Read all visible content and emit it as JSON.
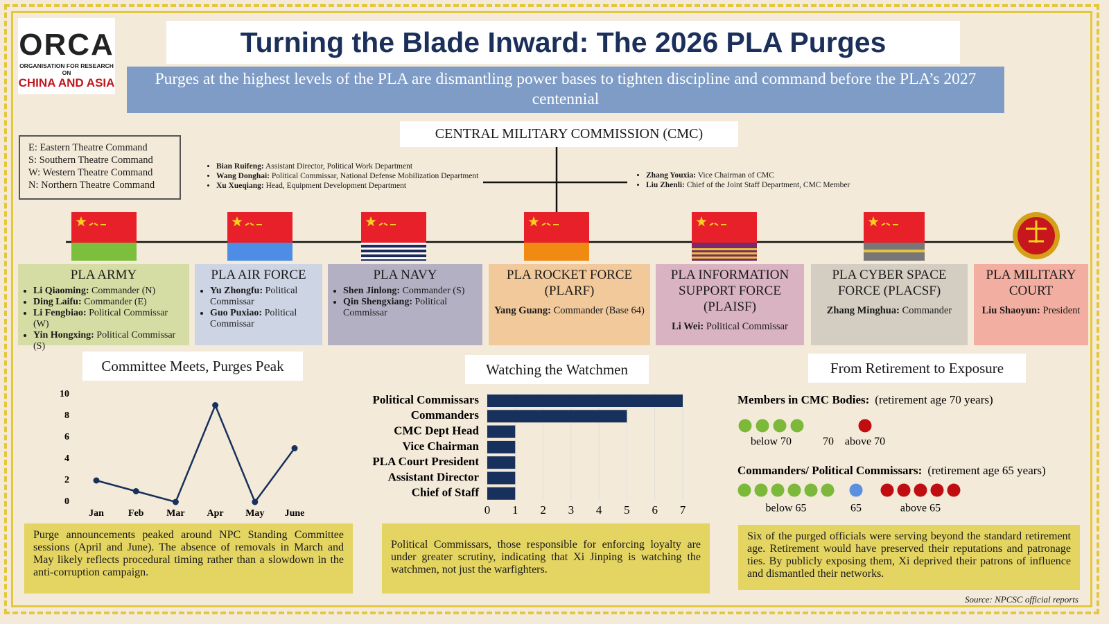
{
  "header": {
    "logo_name": "ORCA",
    "logo_sub1": "ORGANISATION FOR RESEARCH ON",
    "logo_sub2": "CHINA AND ASIA",
    "title": "Turning the Blade Inward: The 2026 PLA Purges",
    "subtitle": "Purges at the highest levels of the PLA are dismantling power bases to tighten discipline and command before the PLA’s 2027 centennial"
  },
  "legend": [
    "E: Eastern Theatre Command",
    "S: Southern Theatre Command",
    "W: Western Theatre Command",
    "N: Northern Theatre Command"
  ],
  "cmc": {
    "title": "CENTRAL MILITARY COMMISSION (CMC)",
    "left": [
      {
        "name": "Bian Ruifeng:",
        "role": "Assistant Director, Political Work Department"
      },
      {
        "name": "Wang Donghai:",
        "role": "Political Commissar, National Defense Mobilization Department"
      },
      {
        "name": "Xu Xueqiang:",
        "role": "Head, Equipment Development Department"
      }
    ],
    "right": [
      {
        "name": "Zhang Youxia:",
        "role": "Vice Chairman of CMC"
      },
      {
        "name": "Liu Zhenli:",
        "role": "Chief of the Joint Staff Department, CMC Member"
      }
    ]
  },
  "branches": [
    {
      "title": "PLA ARMY",
      "members": [
        {
          "name": "Li Qiaoming:",
          "role": "Commander (N)"
        },
        {
          "name": "Ding Laifu:",
          "role": "Commander (E)"
        },
        {
          "name": "Li Fengbiao:",
          "role": "Political Commissar (W)"
        },
        {
          "name": "Yin Hongxing:",
          "role": "Political Commissar (S)"
        }
      ]
    },
    {
      "title": "PLA AIR FORCE",
      "members": [
        {
          "name": "Yu Zhongfu:",
          "role": "Political Commissar"
        },
        {
          "name": "Guo Puxiao:",
          "role": "Political Commissar"
        }
      ]
    },
    {
      "title": "PLA NAVY",
      "members": [
        {
          "name": "Shen Jinlong:",
          "role": "Commander (S)"
        },
        {
          "name": "Qin Shengxiang:",
          "role": "Political Commissar"
        }
      ]
    },
    {
      "title": "PLA ROCKET FORCE (PLARF)",
      "members": [
        {
          "name": "Yang Guang:",
          "role": "Commander (Base 64)"
        }
      ]
    },
    {
      "title": "PLA INFORMATION SUPPORT FORCE (PLAISF)",
      "members": [
        {
          "name": "Li Wei:",
          "role": "Political Commissar"
        }
      ]
    },
    {
      "title": "PLA CYBER SPACE FORCE (PLACSF)",
      "members": [
        {
          "name": "Zhang Minghua:",
          "role": "Commander"
        }
      ]
    },
    {
      "title": "PLA MILITARY COURT",
      "members": [
        {
          "name": "Liu Shaoyun:",
          "role": "President"
        }
      ]
    }
  ],
  "chart_data": [
    {
      "type": "line",
      "title": "Committee Meets, Purges Peak",
      "categories": [
        "Jan",
        "Feb",
        "Mar",
        "Apr",
        "May",
        "June"
      ],
      "values": [
        2,
        1,
        0,
        9,
        0,
        5
      ],
      "color": "#17305c",
      "ylim": [
        0,
        10
      ],
      "yticks": [
        0,
        2,
        4,
        6,
        8,
        10
      ],
      "caption": "Purge announcements peaked around NPC Standing Committee sessions (April and June). The absence of removals in March and May likely reflects procedural timing rather than a slowdown in the anti-corruption campaign."
    },
    {
      "type": "hbar",
      "title": "Watching the Watchmen",
      "categories": [
        "Political Commissars",
        "Commanders",
        "CMC Dept Head",
        "Vice Chairman",
        "PLA Court President",
        "Assistant Director",
        "Chief of Staff"
      ],
      "values": [
        7,
        5,
        1,
        1,
        1,
        1,
        1
      ],
      "color": "#17305c",
      "xlim": [
        0,
        7
      ],
      "xticks": [
        0,
        1,
        2,
        3,
        4,
        5,
        6,
        7
      ],
      "grid": true,
      "caption": "Political Commissars, those responsible for enforcing loyalty are under greater scrutiny, indicating that Xi Jinping is watching the watchmen, not just the warfighters."
    }
  ],
  "retirement": {
    "title": "From Retirement to Exposure",
    "groups": [
      {
        "label": "Members in CMC Bodies:",
        "note": "(retirement age 70 years)",
        "counts": [
          {
            "label": "below 70",
            "value": 4,
            "color": "#7cb83a"
          },
          {
            "label": "70",
            "value": 0,
            "color": "#5b8fe0"
          },
          {
            "label": "above 70",
            "value": 1,
            "color": "#c00d12"
          }
        ]
      },
      {
        "label": "Commanders/ Political Commissars:",
        "note": "(retirement age 65 years)",
        "counts": [
          {
            "label": "below 65",
            "value": 6,
            "color": "#7cb83a"
          },
          {
            "label": "65",
            "value": 1,
            "color": "#5b8fe0"
          },
          {
            "label": "above 65",
            "value": 5,
            "color": "#c00d12"
          }
        ]
      }
    ],
    "caption": "Six of the purged officials were serving beyond the standard retirement age. Retirement would have preserved their reputations and patronage ties. By publicly exposing them, Xi deprived their patrons of influence and dismantled their networks."
  },
  "source": "Source: NPCSC official reports"
}
